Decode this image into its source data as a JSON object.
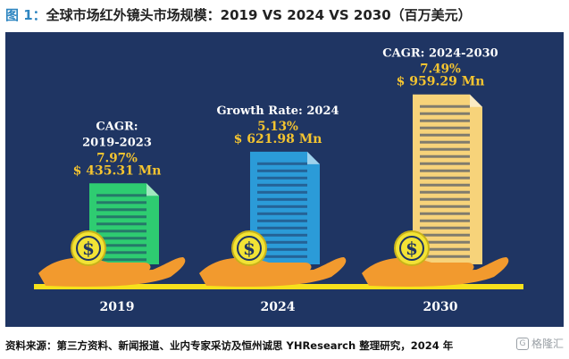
{
  "figure": {
    "label": "图 1：",
    "title": "全球市场红外镜头市场规模：2019 VS 2024 VS 2030（百万美元）"
  },
  "source": "资料来源：第三方资料、新闻报道、业内专家采访及恒州诚思 YHResearch 整理研究，2024 年",
  "watermark": {
    "text": "格隆汇",
    "icon": "watermark-g-icon"
  },
  "colors": {
    "panel": "#1f3563",
    "gold": "#f4c430",
    "hand": "#f29a2e",
    "coin": "#f2e335",
    "bar_2019": "#2ecc71",
    "bar_2024": "#2b9bd8",
    "bar_2030": "#f7d37a",
    "axis": "#f7e11b"
  },
  "chart_data": {
    "type": "bar",
    "title": "",
    "categories": [
      "2019",
      "2024",
      "2030"
    ],
    "values": [
      435.31,
      621.98,
      959.29
    ],
    "value_labels": [
      "$ 435.31 Mn",
      "$ 621.98 Mn",
      "$ 959.29 Mn"
    ],
    "unit": "百万美元",
    "annotations": [
      {
        "category": "2019",
        "lines": [
          "CAGR:",
          "2019-2023"
        ],
        "value": "7.97%"
      },
      {
        "category": "2024",
        "lines": [
          "Growth Rate: 2024"
        ],
        "value": "5.13%"
      },
      {
        "category": "2030",
        "lines": [
          "CAGR: 2024-2030"
        ],
        "value": "7.49%"
      }
    ],
    "xlabel": "",
    "ylabel": "",
    "ylim": [
      0,
      1000
    ],
    "grid": false,
    "legend": "none"
  }
}
